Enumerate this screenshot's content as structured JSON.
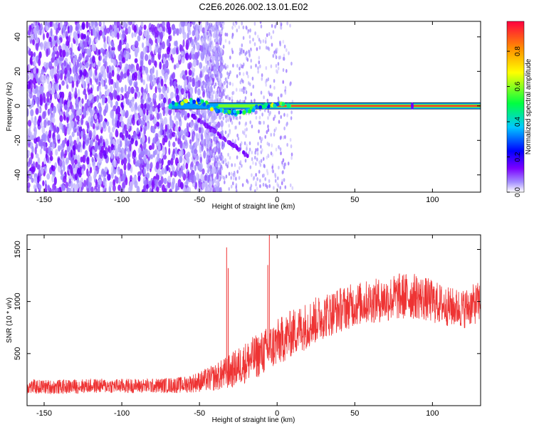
{
  "title": "C2E6.2026.002.13.01.E02",
  "chart_data": [
    {
      "type": "heatmap",
      "xlabel": "Height of straight line (km)",
      "ylabel": "Frequency (Hz)",
      "xlim": [
        -161,
        131
      ],
      "ylim": [
        -50,
        49
      ],
      "xticks": [
        -150,
        -100,
        -50,
        0,
        50,
        100
      ],
      "yticks": [
        -40,
        -20,
        0,
        20,
        40
      ],
      "colorbar": {
        "label": "Normalized spectral amplitude",
        "range": [
          0.0,
          0.97
        ],
        "ticks": [
          0.0,
          0.2,
          0.4,
          0.6,
          0.8
        ],
        "colormap": [
          "#ffffff",
          "#a28cff",
          "#7b00ff",
          "#0000ff",
          "#00c8ff",
          "#00ff40",
          "#ffff00",
          "#ff9000",
          "#ff0040"
        ]
      },
      "dominant_line": {
        "x_start": -68,
        "x_end": 131,
        "frequency_hz": 0,
        "amplitude_max": 0.95
      },
      "secondary_streak": {
        "x_start": -55,
        "x_end": -19,
        "frequency_start_hz": -5,
        "frequency_end_hz": -29
      },
      "noise_region_x": [
        -161,
        -45
      ],
      "grid": false
    },
    {
      "type": "line",
      "xlabel": "Height of straight line (km)",
      "ylabel": "SNR (10 * v/v)",
      "xlim": [
        -161,
        131
      ],
      "ylim": [
        0,
        1640
      ],
      "xticks": [
        -150,
        -100,
        -50,
        0,
        50,
        100
      ],
      "yticks": [
        500,
        1000,
        1500
      ],
      "series": [
        {
          "color": "#ee3333",
          "envelope": {
            "x": [
              -161,
              -140,
              -120,
              -100,
              -80,
              -60,
              -50,
              -40,
              -30,
              -20,
              -10,
              0,
              10,
              20,
              30,
              40,
              50,
              60,
              70,
              80,
              90,
              100,
              110,
              120,
              131
            ],
            "center": [
              180,
              180,
              190,
              190,
              190,
              200,
              230,
              270,
              330,
              420,
              500,
              600,
              700,
              780,
              860,
              920,
              970,
              1000,
              1020,
              1050,
              1050,
              1000,
              950,
              930,
              1000
            ],
            "spread": [
              70,
              70,
              70,
              70,
              70,
              80,
              100,
              130,
              170,
              200,
              220,
              230,
              230,
              230,
              220,
              220,
              210,
              210,
              220,
              230,
              220,
              210,
              190,
              190,
              200
            ]
          },
          "spikes": [
            {
              "x": -32.5,
              "y": 1520
            },
            {
              "x": -31.5,
              "y": 1320
            },
            {
              "x": -5,
              "y": 1640
            },
            {
              "x": -6,
              "y": 1350
            }
          ]
        }
      ],
      "grid": false
    }
  ]
}
